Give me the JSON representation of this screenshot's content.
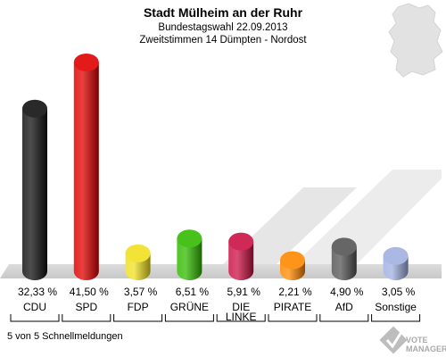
{
  "chart_data": {
    "type": "bar",
    "title": "Stadt Mülheim an der Ruhr",
    "subtitle1": "Bundestagswahl 22.09.2013",
    "subtitle2": "Zweitstimmen 14 Dümpten - Nordost",
    "categories": [
      "CDU",
      "SPD",
      "FDP",
      "GRÜNE",
      "DIE LINKE",
      "PIRATE",
      "AfD",
      "Sonstige"
    ],
    "value_labels": [
      "32,33 %",
      "41,50 %",
      "3,57 %",
      "6,51 %",
      "5,91 %",
      "2,21 %",
      "4,90 %",
      "3,05 %"
    ],
    "values": [
      32.33,
      41.5,
      3.57,
      6.51,
      5.91,
      2.21,
      4.9,
      3.05
    ],
    "colors": [
      "#111111",
      "#e00000",
      "#f0e020",
      "#33bb00",
      "#cc1144",
      "#ff8800",
      "#555555",
      "#a0b0e0"
    ],
    "footer": "5 von 5 Schnellmeldungen",
    "logo_text": "VOTE MANAGER"
  }
}
